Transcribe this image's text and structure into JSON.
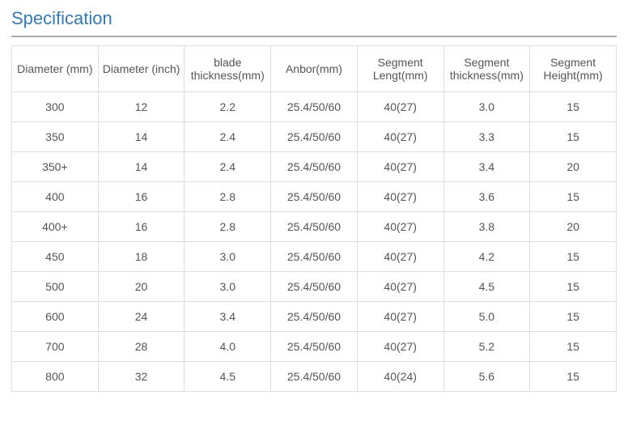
{
  "title": "Specification",
  "title_color": "#337ab7",
  "title_underline_color": "#aaaaaa",
  "title_fontsize": 22,
  "cell_fontsize": 14,
  "text_color": "#555555",
  "border_color": "#dddddd",
  "background_color": "#ffffff",
  "table": {
    "type": "table",
    "columns": [
      "Diameter (mm)",
      "Diameter (inch)",
      "blade thickness(mm)",
      "Anbor(mm)",
      "Segment Lengt(mm)",
      "Segment thickness(mm)",
      "Segment Height(mm)"
    ],
    "rows": [
      [
        "300",
        "12",
        "2.2",
        "25.4/50/60",
        "40(27)",
        "3.0",
        "15"
      ],
      [
        "350",
        "14",
        "2.4",
        "25.4/50/60",
        "40(27)",
        "3.3",
        "15"
      ],
      [
        "350+",
        "14",
        "2.4",
        "25.4/50/60",
        "40(27)",
        "3.4",
        "20"
      ],
      [
        "400",
        "16",
        "2.8",
        "25.4/50/60",
        "40(27)",
        "3.6",
        "15"
      ],
      [
        "400+",
        "16",
        "2.8",
        "25.4/50/60",
        "40(27)",
        "3.8",
        "20"
      ],
      [
        "450",
        "18",
        "3.0",
        "25.4/50/60",
        "40(27)",
        "4.2",
        "15"
      ],
      [
        "500",
        "20",
        "3.0",
        "25.4/50/60",
        "40(27)",
        "4.5",
        "15"
      ],
      [
        "600",
        "24",
        "3.4",
        "25.4/50/60",
        "40(27)",
        "5.0",
        "15"
      ],
      [
        "700",
        "28",
        "4.0",
        "25.4/50/60",
        "40(27)",
        "5.2",
        "15"
      ],
      [
        "800",
        "32",
        "4.5",
        "25.4/50/60",
        "40(24)",
        "5.6",
        "15"
      ]
    ]
  }
}
